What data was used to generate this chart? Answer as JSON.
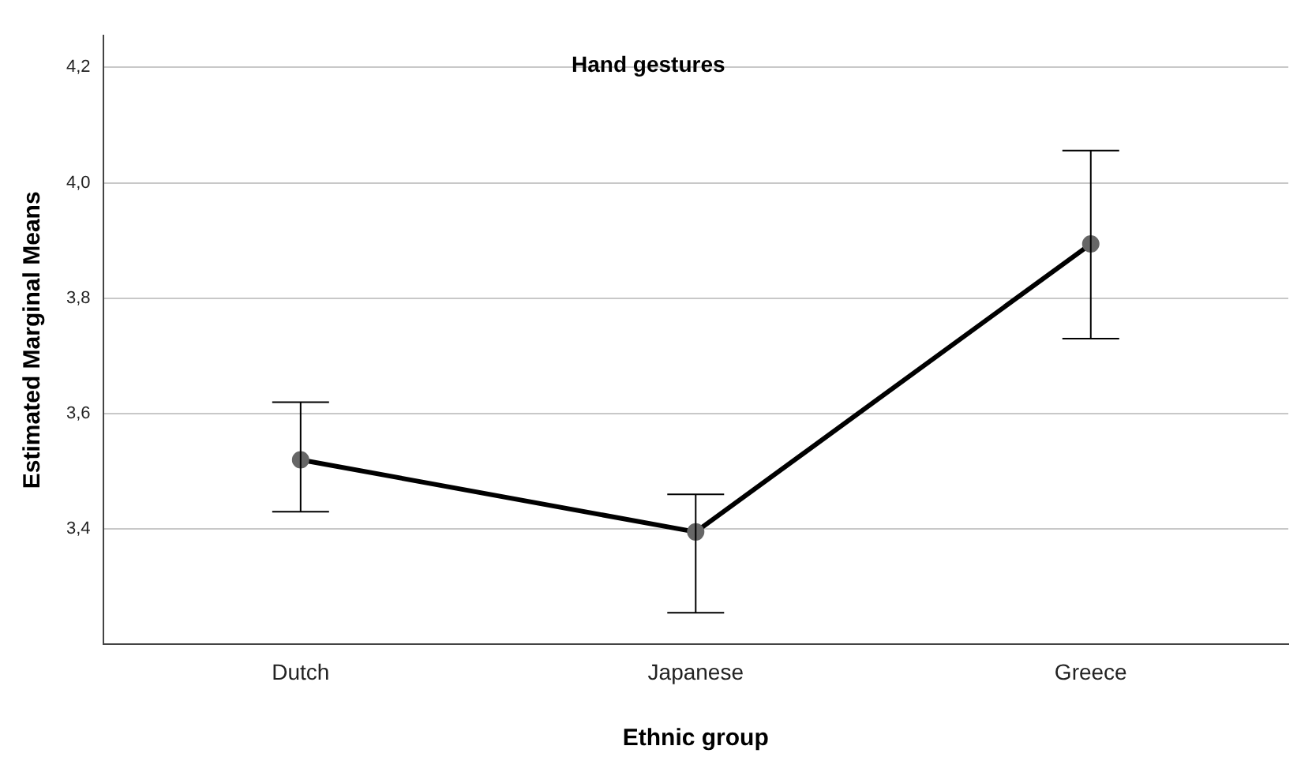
{
  "chart_data": {
    "type": "line",
    "title": "Hand gestures",
    "xlabel": "Ethnic group",
    "ylabel": "Estimated Marginal Means",
    "categories": [
      "Dutch",
      "Japanese",
      "Greece"
    ],
    "series": [
      {
        "color": "#000000",
        "values": [
          3.52,
          3.395,
          3.894
        ],
        "errors": [
          [
            3.43,
            3.62
          ],
          [
            3.255,
            3.46
          ],
          [
            3.73,
            4.056
          ]
        ]
      }
    ],
    "ylim": [
      3.2,
      4.255
    ],
    "yticks": [
      {
        "value": 3.4,
        "label": "3,4"
      },
      {
        "value": 3.6,
        "label": "3,6"
      },
      {
        "value": 3.8,
        "label": "3,8"
      },
      {
        "value": 4.0,
        "label": "4,0"
      },
      {
        "value": 4.2,
        "label": "4,2"
      }
    ],
    "grid": "y",
    "legend": false,
    "marker": "circle",
    "line_style": "solid"
  }
}
